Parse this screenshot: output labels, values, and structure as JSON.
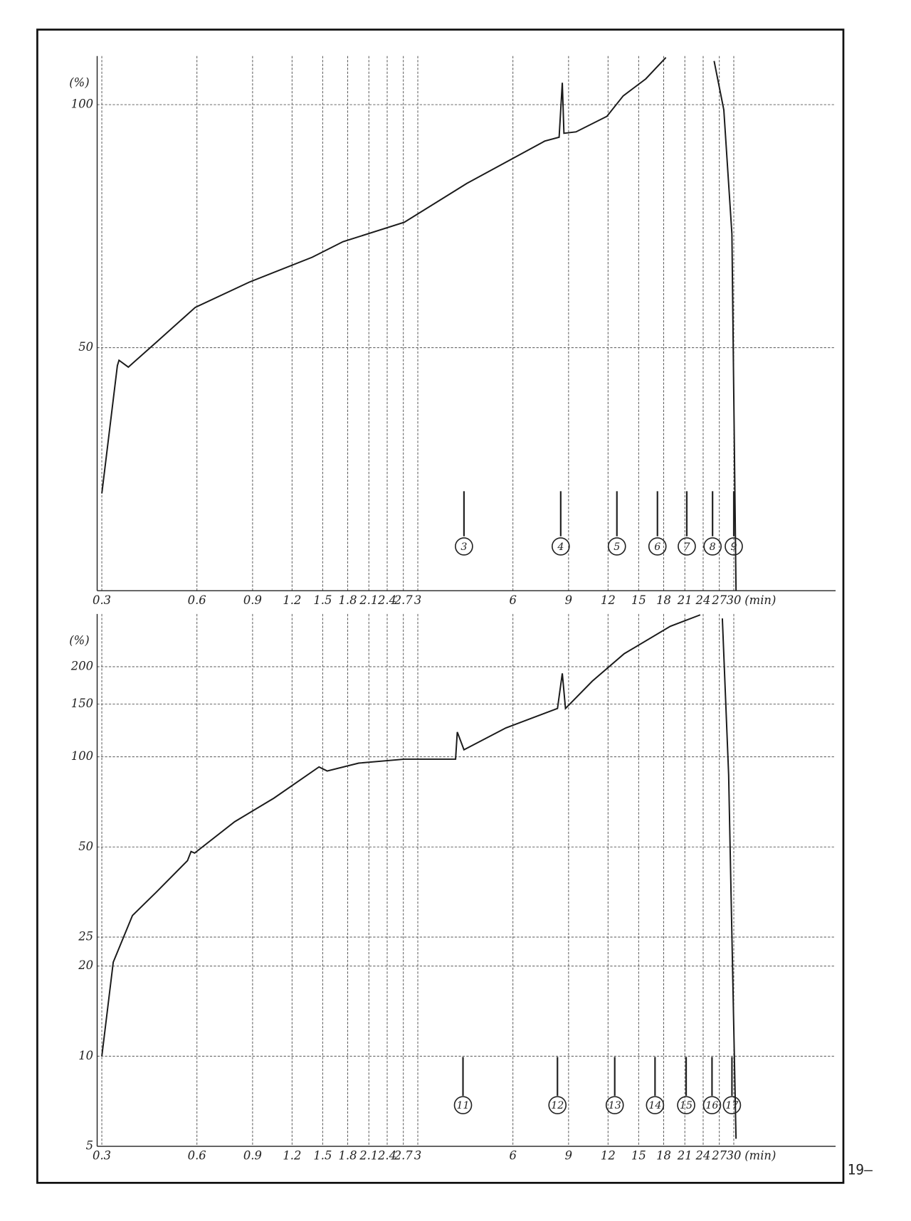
{
  "chart_data": [
    {
      "type": "line",
      "xscale": "log",
      "yscale": "linear",
      "y_label": "(%)",
      "x_label": "(min)",
      "color": "#1a1a1a",
      "grid": true,
      "xlim": [
        0.29,
        63
      ],
      "ylim": [
        0,
        110
      ],
      "xticks": [
        0.3,
        0.6,
        0.9,
        1.2,
        1.5,
        1.8,
        2.1,
        2.4,
        2.7,
        3,
        6,
        9,
        12,
        15,
        18,
        21,
        24,
        27,
        30
      ],
      "yticks": [
        50,
        100
      ],
      "x": [
        0.3,
        0.336,
        0.34,
        0.364,
        0.446,
        0.593,
        0.88,
        1.39,
        1.74,
        2.72,
        4.29,
        7.56,
        8.4,
        8.6,
        8.7,
        9.5,
        11.9,
        13.4,
        15.8,
        18.3,
        null,
        26,
        27.9,
        29.6,
        30.5
      ],
      "values": [
        20,
        46.3,
        47.4,
        46,
        51.1,
        58.3,
        63.5,
        68.6,
        71.8,
        75.8,
        83.8,
        92.5,
        93.3,
        104.5,
        94.1,
        94.4,
        97.6,
        101.8,
        105.3,
        109.7,
        null,
        109,
        98.9,
        73.4,
        0
      ],
      "markers": [
        {
          "label": "3",
          "x": 4.2
        },
        {
          "label": "4",
          "x": 8.5
        },
        {
          "label": "5",
          "x": 12.8
        },
        {
          "label": "6",
          "x": 17.2
        },
        {
          "label": "7",
          "x": 21.3
        },
        {
          "label": "8",
          "x": 25.7
        },
        {
          "label": "9",
          "x": 30
        }
      ]
    },
    {
      "type": "line",
      "xscale": "log",
      "yscale": "log",
      "y_label": "(%)",
      "x_label": "(min)",
      "color": "#1a1a1a",
      "grid": true,
      "xlim": [
        0.29,
        63
      ],
      "ylim": [
        5,
        300
      ],
      "xticks": [
        0.3,
        0.6,
        0.9,
        1.2,
        1.5,
        1.8,
        2.1,
        2.4,
        2.7,
        3,
        6,
        9,
        12,
        15,
        18,
        21,
        24,
        27,
        30
      ],
      "yticks": [
        5,
        10,
        20,
        25,
        50,
        100,
        150,
        200
      ],
      "x": [
        0.3,
        0.326,
        0.375,
        0.446,
        0.56,
        0.575,
        0.59,
        0.79,
        1.05,
        1.46,
        1.55,
        1.95,
        2.72,
        3.95,
        4.0,
        4.2,
        5.7,
        8.3,
        8.6,
        8.8,
        10.7,
        13.5,
        18.9,
        23.5,
        null,
        27.6,
        28.9,
        30.5
      ],
      "values": [
        10,
        20.6,
        29.5,
        35.3,
        45,
        48.3,
        47.7,
        60.7,
        72.7,
        92.5,
        89.7,
        95.3,
        98.2,
        98.2,
        121,
        105.6,
        124.9,
        145,
        190,
        145,
        179,
        221,
        273,
        298,
        null,
        290,
        87,
        5.3
      ],
      "markers": [
        {
          "label": "11",
          "x": 4.17
        },
        {
          "label": "12",
          "x": 8.3
        },
        {
          "label": "13",
          "x": 12.6
        },
        {
          "label": "14",
          "x": 16.9
        },
        {
          "label": "15",
          "x": 21.2
        },
        {
          "label": "16",
          "x": 25.6
        },
        {
          "label": "17",
          "x": 29.6
        }
      ]
    }
  ],
  "page_number": "19—"
}
